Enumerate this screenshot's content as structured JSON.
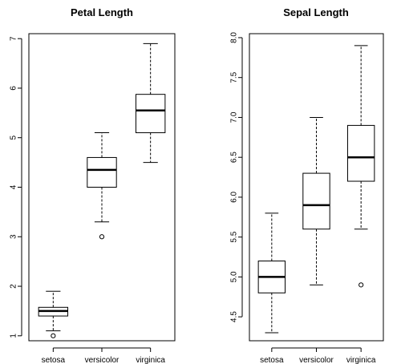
{
  "chart_data": [
    {
      "type": "boxplot",
      "title": "Petal Length",
      "categories": [
        "setosa",
        "versicolor",
        "virginica"
      ],
      "ylim": [
        0.9,
        7.1
      ],
      "yticks": [
        1,
        2,
        3,
        4,
        5,
        6,
        7
      ],
      "ytick_labels": [
        "1",
        "2",
        "3",
        "4",
        "5",
        "6",
        "7"
      ],
      "boxes": [
        {
          "whisker_low": 1.1,
          "q1": 1.4,
          "median": 1.5,
          "q3": 1.575,
          "whisker_high": 1.9,
          "outliers": [
            1.0
          ]
        },
        {
          "whisker_low": 3.3,
          "q1": 4.0,
          "median": 4.35,
          "q3": 4.6,
          "whisker_high": 5.1,
          "outliers": [
            3.0
          ]
        },
        {
          "whisker_low": 4.5,
          "q1": 5.1,
          "median": 5.55,
          "q3": 5.875,
          "whisker_high": 6.9,
          "outliers": []
        }
      ]
    },
    {
      "type": "boxplot",
      "title": "Sepal Length",
      "categories": [
        "setosa",
        "versicolor",
        "virginica"
      ],
      "ylim": [
        4.2,
        8.05
      ],
      "yticks": [
        4.5,
        5.0,
        5.5,
        6.0,
        6.5,
        7.0,
        7.5,
        8.0
      ],
      "ytick_labels": [
        "4.5",
        "5.0",
        "5.5",
        "6.0",
        "6.5",
        "7.0",
        "7.5",
        "8.0"
      ],
      "boxes": [
        {
          "whisker_low": 4.3,
          "q1": 4.8,
          "median": 5.0,
          "q3": 5.2,
          "whisker_high": 5.8,
          "outliers": []
        },
        {
          "whisker_low": 4.9,
          "q1": 5.6,
          "median": 5.9,
          "q3": 6.3,
          "whisker_high": 7.0,
          "outliers": []
        },
        {
          "whisker_low": 5.6,
          "q1": 6.2,
          "median": 6.5,
          "q3": 6.9,
          "whisker_high": 7.9,
          "outliers": [
            4.9
          ]
        }
      ]
    }
  ]
}
